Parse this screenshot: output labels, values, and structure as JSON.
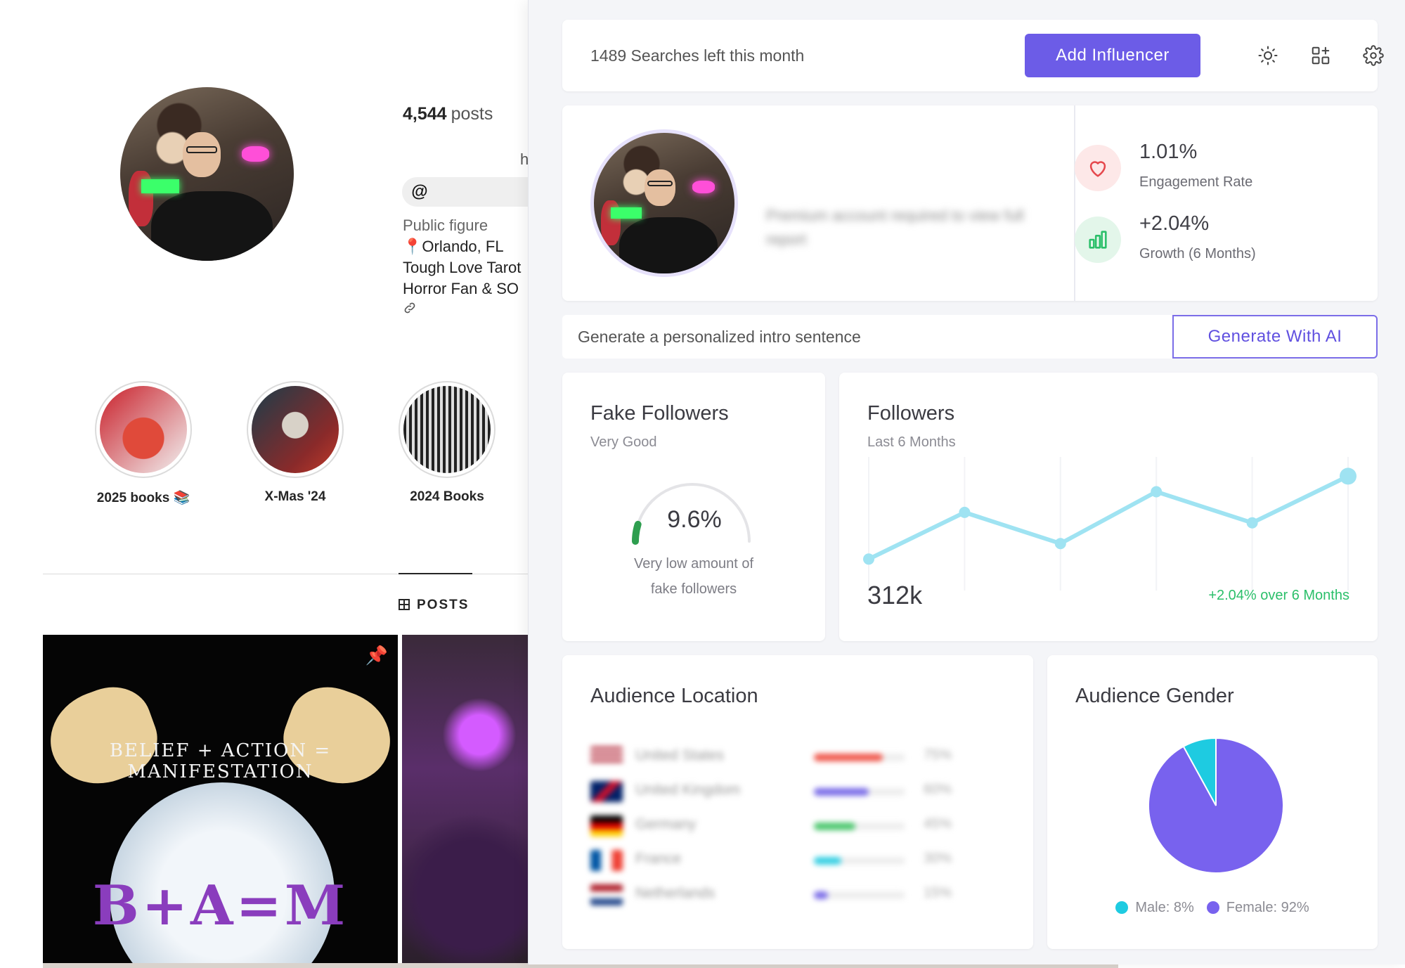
{
  "instagram": {
    "posts_count": "4,544",
    "posts_label": "posts",
    "partial_name": "h",
    "bio": {
      "category": "Public figure",
      "location": "📍Orlando, FL",
      "line1": "Tough Love Tarot",
      "line2": "Horror Fan & SO"
    },
    "highlights": [
      {
        "label": "2025 books 📚"
      },
      {
        "label": "X-Mas '24"
      },
      {
        "label": "2024 Books"
      }
    ],
    "tab_posts": "POSTS",
    "post1": {
      "arc_text": "BELIEF + ACTION = MANIFESTATION",
      "main_text": "B+A=M"
    }
  },
  "extension": {
    "searches_left": "1489 Searches left this month",
    "add_button": "Add Influencer",
    "icons": {
      "theme": "sun-icon",
      "apps": "apps-add-icon",
      "settings": "gear-icon"
    },
    "premium_note": "Premium account required to view full report",
    "engagement": {
      "value": "1.01%",
      "label": "Engagement Rate"
    },
    "growth": {
      "value": "+2.04%",
      "label": "Growth (6 Months)"
    },
    "intro_placeholder": "Generate a personalized intro sentence",
    "generate_button": "Generate With AI",
    "fake_followers": {
      "title": "Fake Followers",
      "subtitle": "Very Good",
      "value": "9.6%",
      "percent": 9.6,
      "description_line1": "Very low amount of",
      "description_line2": "fake followers",
      "gauge_color": "#2e9e4f"
    },
    "followers": {
      "title": "Followers",
      "subtitle": "Last 6 Months",
      "value": "312k",
      "growth_text": "+2.04% over 6 Months",
      "line_color": "#9fe3f2"
    },
    "audience_location": {
      "title": "Audience Location",
      "rows": [
        {
          "country": "United States",
          "pct": "75%",
          "fill": 0.75,
          "color": "#f05a4e"
        },
        {
          "country": "United Kingdom",
          "pct": "60%",
          "fill": 0.6,
          "color": "#7b6de8"
        },
        {
          "country": "Germany",
          "pct": "45%",
          "fill": 0.45,
          "color": "#4cc76e"
        },
        {
          "country": "France",
          "pct": "30%",
          "fill": 0.3,
          "color": "#35cfe3"
        },
        {
          "country": "Netherlands",
          "pct": "15%",
          "fill": 0.15,
          "color": "#7b6de8"
        }
      ]
    },
    "audience_gender": {
      "title": "Audience Gender",
      "male_label": "Male: 8%",
      "female_label": "Female: 92%",
      "male_color": "#1ecbe1",
      "female_color": "#7862ee"
    }
  },
  "chart_data": [
    {
      "type": "line",
      "x": [
        "1",
        "2",
        "3",
        "4",
        "5",
        "6"
      ],
      "series": [
        {
          "values": [
            296,
            305,
            299,
            309,
            303,
            312
          ]
        }
      ],
      "grid": true
    },
    {
      "type": "pie",
      "categories": [
        "Male",
        "Female"
      ],
      "values": [
        8,
        92
      ]
    }
  ]
}
